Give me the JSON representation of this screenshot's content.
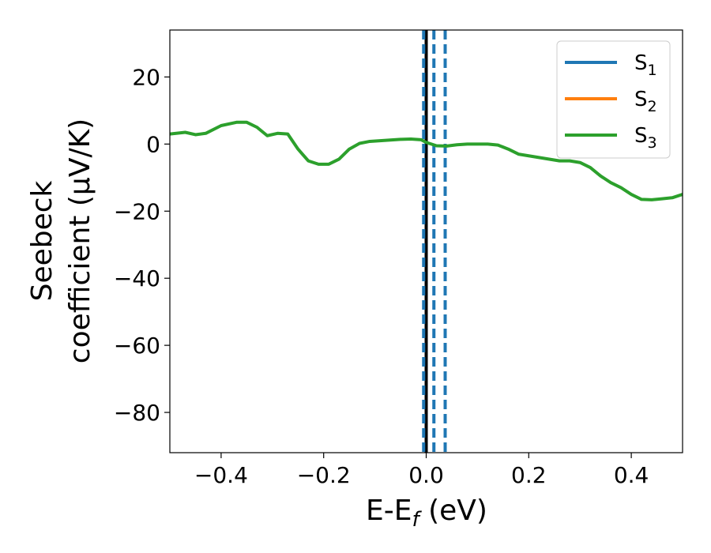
{
  "chart_data": {
    "type": "line",
    "xlabel": "E-E",
    "xlabel_sub": "f",
    "xlabel_unit": " (eV)",
    "ylabel_line1": "Seebeck",
    "ylabel_line2": "coefficient  (μV/K)",
    "xlim": [
      -0.5,
      0.5
    ],
    "ylim": [
      -92,
      34
    ],
    "xticks": [
      -0.4,
      -0.2,
      0.0,
      0.2,
      0.4
    ],
    "xtick_labels": [
      "−0.4",
      "−0.2",
      "0.0",
      "0.2",
      "0.4"
    ],
    "yticks": [
      20,
      0,
      -20,
      -40,
      -60,
      -80
    ],
    "ytick_labels": [
      "20",
      "0",
      "−20",
      "−40",
      "−60",
      "−80"
    ],
    "grid": false,
    "legend_position": "top-right",
    "series": [
      {
        "name": "S",
        "sub": "1",
        "color": "#1f77b4",
        "x": [],
        "y": []
      },
      {
        "name": "S",
        "sub": "2",
        "color": "#ff7f0e",
        "x": [],
        "y": []
      },
      {
        "name": "S",
        "sub": "3",
        "color": "#2ca02c",
        "x": [
          -0.5,
          -0.47,
          -0.45,
          -0.43,
          -0.4,
          -0.37,
          -0.35,
          -0.33,
          -0.31,
          -0.29,
          -0.27,
          -0.25,
          -0.23,
          -0.21,
          -0.19,
          -0.17,
          -0.15,
          -0.13,
          -0.11,
          -0.09,
          -0.07,
          -0.05,
          -0.03,
          -0.01,
          0.0,
          0.02,
          0.04,
          0.06,
          0.08,
          0.1,
          0.12,
          0.14,
          0.16,
          0.18,
          0.2,
          0.22,
          0.24,
          0.26,
          0.28,
          0.3,
          0.32,
          0.34,
          0.36,
          0.38,
          0.4,
          0.42,
          0.44,
          0.46,
          0.48,
          0.5
        ],
        "y": [
          3.0,
          3.5,
          2.8,
          3.2,
          5.5,
          6.5,
          6.5,
          5.0,
          2.5,
          3.2,
          3.0,
          -1.5,
          -5.0,
          -6.0,
          -6.0,
          -4.5,
          -1.5,
          0.2,
          0.8,
          1.0,
          1.2,
          1.4,
          1.5,
          1.3,
          0.5,
          -0.5,
          -0.6,
          -0.2,
          0.0,
          0.0,
          0.0,
          -0.3,
          -1.5,
          -3.0,
          -3.5,
          -4.0,
          -4.5,
          -5.0,
          -5.0,
          -5.5,
          -7.0,
          -9.5,
          -11.5,
          -13.0,
          -15.0,
          -16.5,
          -16.6,
          -16.3,
          -16.0,
          -15.0
        ]
      }
    ],
    "vertical_lines": [
      {
        "x": 0.0,
        "style": "solid",
        "color": "#000000"
      },
      {
        "x": -0.005,
        "style": "dashed",
        "color": "#1f77b4"
      },
      {
        "x": 0.015,
        "style": "dashed",
        "color": "#1f77b4"
      },
      {
        "x": 0.037,
        "style": "dashed",
        "color": "#1f77b4"
      }
    ]
  }
}
